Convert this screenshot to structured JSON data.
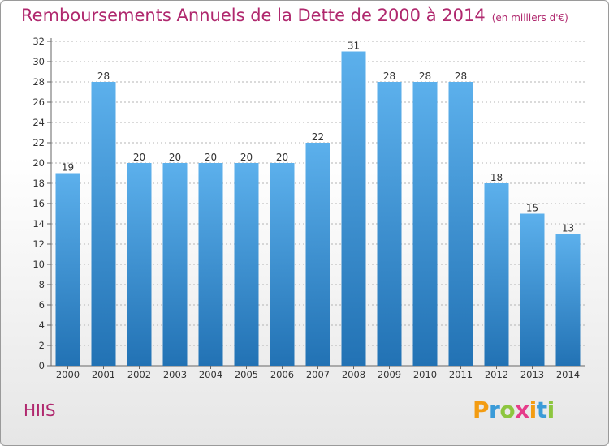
{
  "title": {
    "main": "Remboursements Annuels de la Dette de 2000 à 2014",
    "sub": "(en milliers d'€)"
  },
  "commune": "HIIS",
  "logo": {
    "text": "Proxiti",
    "letters": [
      {
        "char": "P",
        "color": "#f39c12"
      },
      {
        "char": "r",
        "color": "#3b9bd8"
      },
      {
        "char": "o",
        "color": "#8dc63f"
      },
      {
        "char": "x",
        "color": "#e63c8a"
      },
      {
        "char": "i",
        "color": "#f39c12"
      },
      {
        "char": "t",
        "color": "#3b9bd8"
      },
      {
        "char": "i",
        "color": "#8dc63f"
      }
    ]
  },
  "colors": {
    "title": "#b0286e",
    "bar_top": "#5cb0ec",
    "bar_bottom": "#2272b4",
    "grid": "#b4b4b4"
  },
  "chart_data": {
    "type": "bar",
    "title": "Remboursements Annuels de la Dette de 2000 à 2014",
    "subtitle": "(en milliers d'€)",
    "categories": [
      "2000",
      "2001",
      "2002",
      "2003",
      "2004",
      "2005",
      "2006",
      "2007",
      "2008",
      "2009",
      "2010",
      "2011",
      "2012",
      "2013",
      "2014"
    ],
    "values": [
      19,
      28,
      20,
      20,
      20,
      20,
      20,
      22,
      31,
      28,
      28,
      28,
      18,
      15,
      13
    ],
    "data_labels": [
      "19",
      "28",
      "20",
      "20",
      "20",
      "20",
      "20",
      "22",
      "31",
      "28",
      "28",
      "28",
      "18",
      "15",
      "13"
    ],
    "y_ticks": [
      0,
      2,
      4,
      6,
      8,
      10,
      12,
      14,
      16,
      18,
      20,
      22,
      24,
      26,
      28,
      30,
      32
    ],
    "ylim": [
      0,
      32
    ],
    "xlabel": "",
    "ylabel": "",
    "grid": true,
    "legend": "none"
  }
}
